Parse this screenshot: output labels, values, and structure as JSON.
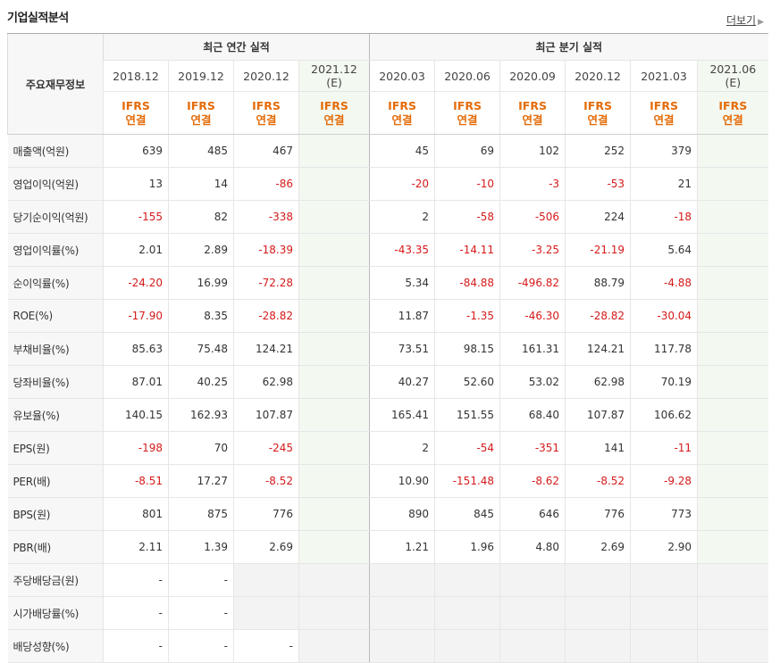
{
  "section_title": "기업실적분석",
  "more_label": "더보기",
  "more_arrow": "▶",
  "row_header": "주요재무정보",
  "groups": {
    "annual": "최근 연간 실적",
    "quarterly": "최근 분기 실적"
  },
  "periods": [
    "2018.12",
    "2019.12",
    "2020.12",
    "2021.12",
    "2020.03",
    "2020.06",
    "2020.09",
    "2020.12",
    "2021.03",
    "2021.06"
  ],
  "estimate_mark": "(E)",
  "standard": {
    "line1": "IFRS",
    "line2": "연결"
  },
  "rows": [
    {
      "label": "매출액(억원)",
      "values": [
        "639",
        "485",
        "467",
        "",
        "45",
        "69",
        "102",
        "252",
        "379",
        ""
      ]
    },
    {
      "label": "영업이익(억원)",
      "values": [
        "13",
        "14",
        "-86",
        "",
        "-20",
        "-10",
        "-3",
        "-53",
        "21",
        ""
      ]
    },
    {
      "label": "당기순이익(억원)",
      "values": [
        "-155",
        "82",
        "-338",
        "",
        "2",
        "-58",
        "-506",
        "224",
        "-18",
        ""
      ]
    },
    {
      "label": "영업이익률(%)",
      "values": [
        "2.01",
        "2.89",
        "-18.39",
        "",
        "-43.35",
        "-14.11",
        "-3.25",
        "-21.19",
        "5.64",
        ""
      ]
    },
    {
      "label": "순이익률(%)",
      "values": [
        "-24.20",
        "16.99",
        "-72.28",
        "",
        "5.34",
        "-84.88",
        "-496.82",
        "88.79",
        "-4.88",
        ""
      ]
    },
    {
      "label": "ROE(%)",
      "values": [
        "-17.90",
        "8.35",
        "-28.82",
        "",
        "11.87",
        "-1.35",
        "-46.30",
        "-28.82",
        "-30.04",
        ""
      ]
    },
    {
      "label": "부채비율(%)",
      "values": [
        "85.63",
        "75.48",
        "124.21",
        "",
        "73.51",
        "98.15",
        "161.31",
        "124.21",
        "117.78",
        ""
      ]
    },
    {
      "label": "당좌비율(%)",
      "values": [
        "87.01",
        "40.25",
        "62.98",
        "",
        "40.27",
        "52.60",
        "53.02",
        "62.98",
        "70.19",
        ""
      ]
    },
    {
      "label": "유보율(%)",
      "values": [
        "140.15",
        "162.93",
        "107.87",
        "",
        "165.41",
        "151.55",
        "68.40",
        "107.87",
        "106.62",
        ""
      ]
    },
    {
      "label": "EPS(원)",
      "values": [
        "-198",
        "70",
        "-245",
        "",
        "2",
        "-54",
        "-351",
        "141",
        "-11",
        ""
      ]
    },
    {
      "label": "PER(배)",
      "values": [
        "-8.51",
        "17.27",
        "-8.52",
        "",
        "10.90",
        "-151.48",
        "-8.62",
        "-8.52",
        "-9.28",
        ""
      ]
    },
    {
      "label": "BPS(원)",
      "values": [
        "801",
        "875",
        "776",
        "",
        "890",
        "845",
        "646",
        "776",
        "773",
        ""
      ]
    },
    {
      "label": "PBR(배)",
      "values": [
        "2.11",
        "1.39",
        "2.69",
        "",
        "1.21",
        "1.96",
        "4.80",
        "2.69",
        "2.90",
        ""
      ]
    },
    {
      "label": "주당배당금(원)",
      "values": [
        "-",
        "-",
        "",
        "",
        "",
        "",
        "",
        "",
        "",
        ""
      ]
    },
    {
      "label": "시가배당률(%)",
      "values": [
        "-",
        "-",
        "",
        "",
        "",
        "",
        "",
        "",
        "",
        ""
      ]
    },
    {
      "label": "배당성향(%)",
      "values": [
        "-",
        "-",
        "-",
        "",
        "",
        "",
        "",
        "",
        "",
        ""
      ]
    }
  ]
}
